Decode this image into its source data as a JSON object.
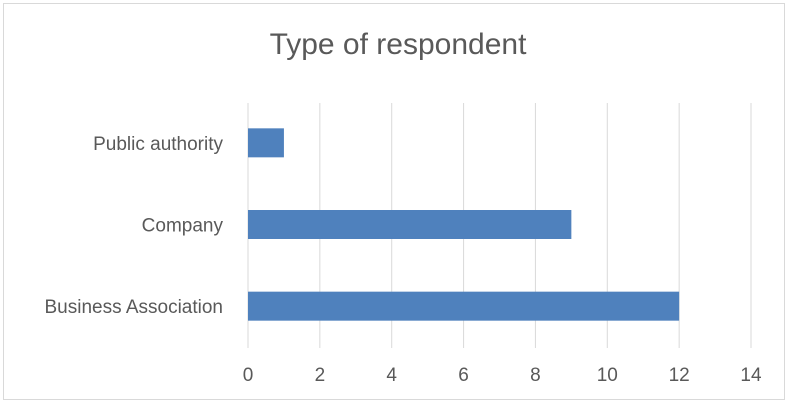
{
  "chart_data": {
    "type": "bar",
    "orientation": "horizontal",
    "title": "Type of respondent",
    "categories": [
      "Public authority",
      "Company",
      "Business Association"
    ],
    "values": [
      1,
      9,
      12
    ],
    "xlim": [
      0,
      14
    ],
    "xticks": [
      "0",
      "2",
      "4",
      "6",
      "8",
      "10",
      "12",
      "14"
    ],
    "grid": true,
    "legend": "none",
    "bar_color": "#4f81bd",
    "grid_color": "#d9d9d9",
    "axis_color": "#d9d9d9",
    "text_color": "#595959"
  }
}
